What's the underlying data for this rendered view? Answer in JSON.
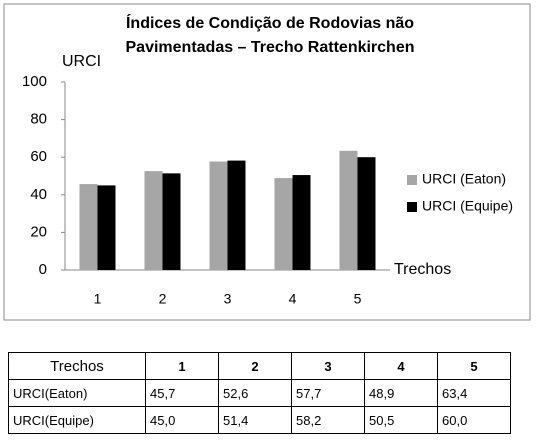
{
  "chart_data": {
    "type": "bar",
    "title": "Índices de Condição de Rodovias não Pavimentadas – Trecho Rattenkirchen",
    "y_label": "URCI",
    "x_label": "Trechos",
    "categories": [
      "1",
      "2",
      "3",
      "4",
      "5"
    ],
    "series": [
      {
        "name": "URCI (Eaton)",
        "color": "#a6a6a6",
        "values": [
          45.7,
          52.6,
          57.7,
          48.9,
          63.4
        ]
      },
      {
        "name": "URCI (Equipe)",
        "color": "#000000",
        "values": [
          45.0,
          51.4,
          58.2,
          50.5,
          60.0
        ]
      }
    ],
    "ylim": [
      0,
      100
    ],
    "yticks": [
      0,
      20,
      40,
      60,
      80,
      100
    ],
    "grid": false,
    "legend": "right"
  },
  "table": {
    "header": [
      "Trechos",
      "1",
      "2",
      "3",
      "4",
      "5"
    ],
    "rows": [
      [
        "URCI(Eaton)",
        "45,7",
        "52,6",
        "57,7",
        "48,9",
        "63,4"
      ],
      [
        "URCI(Equipe)",
        "45,0",
        "51,4",
        "58,2",
        "50,5",
        "60,0"
      ]
    ]
  }
}
